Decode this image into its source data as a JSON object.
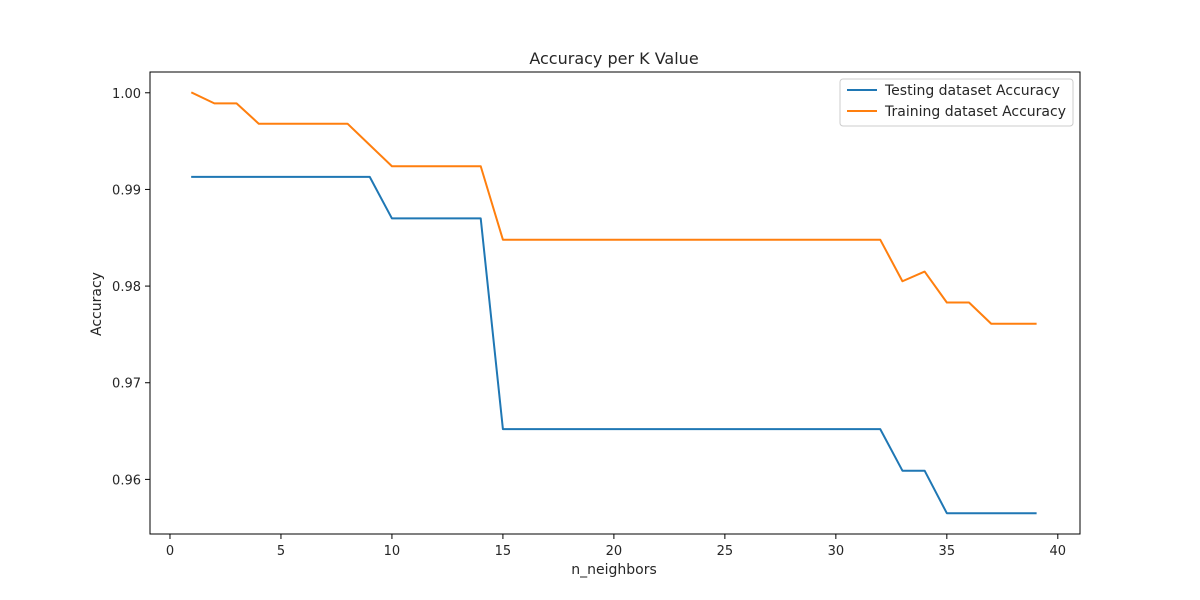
{
  "chart_data": {
    "type": "line",
    "title": "Accuracy per K Value",
    "xlabel": "n_neighbors",
    "ylabel": "Accuracy",
    "xlim": [
      -0.9,
      41.0
    ],
    "ylim": [
      0.95435,
      1.00215
    ],
    "xticks": [
      0,
      5,
      10,
      15,
      20,
      25,
      30,
      35,
      40
    ],
    "xtick_labels": [
      "0",
      "5",
      "10",
      "15",
      "20",
      "25",
      "30",
      "35",
      "40"
    ],
    "yticks": [
      0.96,
      0.97,
      0.98,
      0.99,
      1.0
    ],
    "ytick_labels": [
      "0.96",
      "0.97",
      "0.98",
      "0.99",
      "1.00"
    ],
    "grid": false,
    "legend_position": "top-right",
    "x": [
      1,
      2,
      3,
      4,
      5,
      6,
      7,
      8,
      9,
      10,
      11,
      12,
      13,
      14,
      15,
      16,
      17,
      18,
      19,
      20,
      21,
      22,
      23,
      24,
      25,
      26,
      27,
      28,
      29,
      30,
      31,
      32,
      33,
      34,
      35,
      36,
      37,
      38,
      39
    ],
    "series": [
      {
        "name": "Testing dataset Accuracy",
        "color": "#1f77b4",
        "values": [
          0.9913,
          0.9913,
          0.9913,
          0.9913,
          0.9913,
          0.9913,
          0.9913,
          0.9913,
          0.9913,
          0.987,
          0.987,
          0.987,
          0.987,
          0.987,
          0.9652,
          0.9652,
          0.9652,
          0.9652,
          0.9652,
          0.9652,
          0.9652,
          0.9652,
          0.9652,
          0.9652,
          0.9652,
          0.9652,
          0.9652,
          0.9652,
          0.9652,
          0.9652,
          0.9652,
          0.9652,
          0.9609,
          0.9609,
          0.9565,
          0.9565,
          0.9565,
          0.9565,
          0.9565
        ]
      },
      {
        "name": "Training dataset Accuracy",
        "color": "#ff7f0e",
        "values": [
          1.0,
          0.9989,
          0.9989,
          0.9968,
          0.9968,
          0.9968,
          0.9968,
          0.9968,
          0.9946,
          0.9924,
          0.9924,
          0.9924,
          0.9924,
          0.9924,
          0.9848,
          0.9848,
          0.9848,
          0.9848,
          0.9848,
          0.9848,
          0.9848,
          0.9848,
          0.9848,
          0.9848,
          0.9848,
          0.9848,
          0.9848,
          0.9848,
          0.9848,
          0.9848,
          0.9848,
          0.9848,
          0.9805,
          0.9815,
          0.9783,
          0.9783,
          0.9761,
          0.9761,
          0.9761
        ]
      }
    ]
  }
}
